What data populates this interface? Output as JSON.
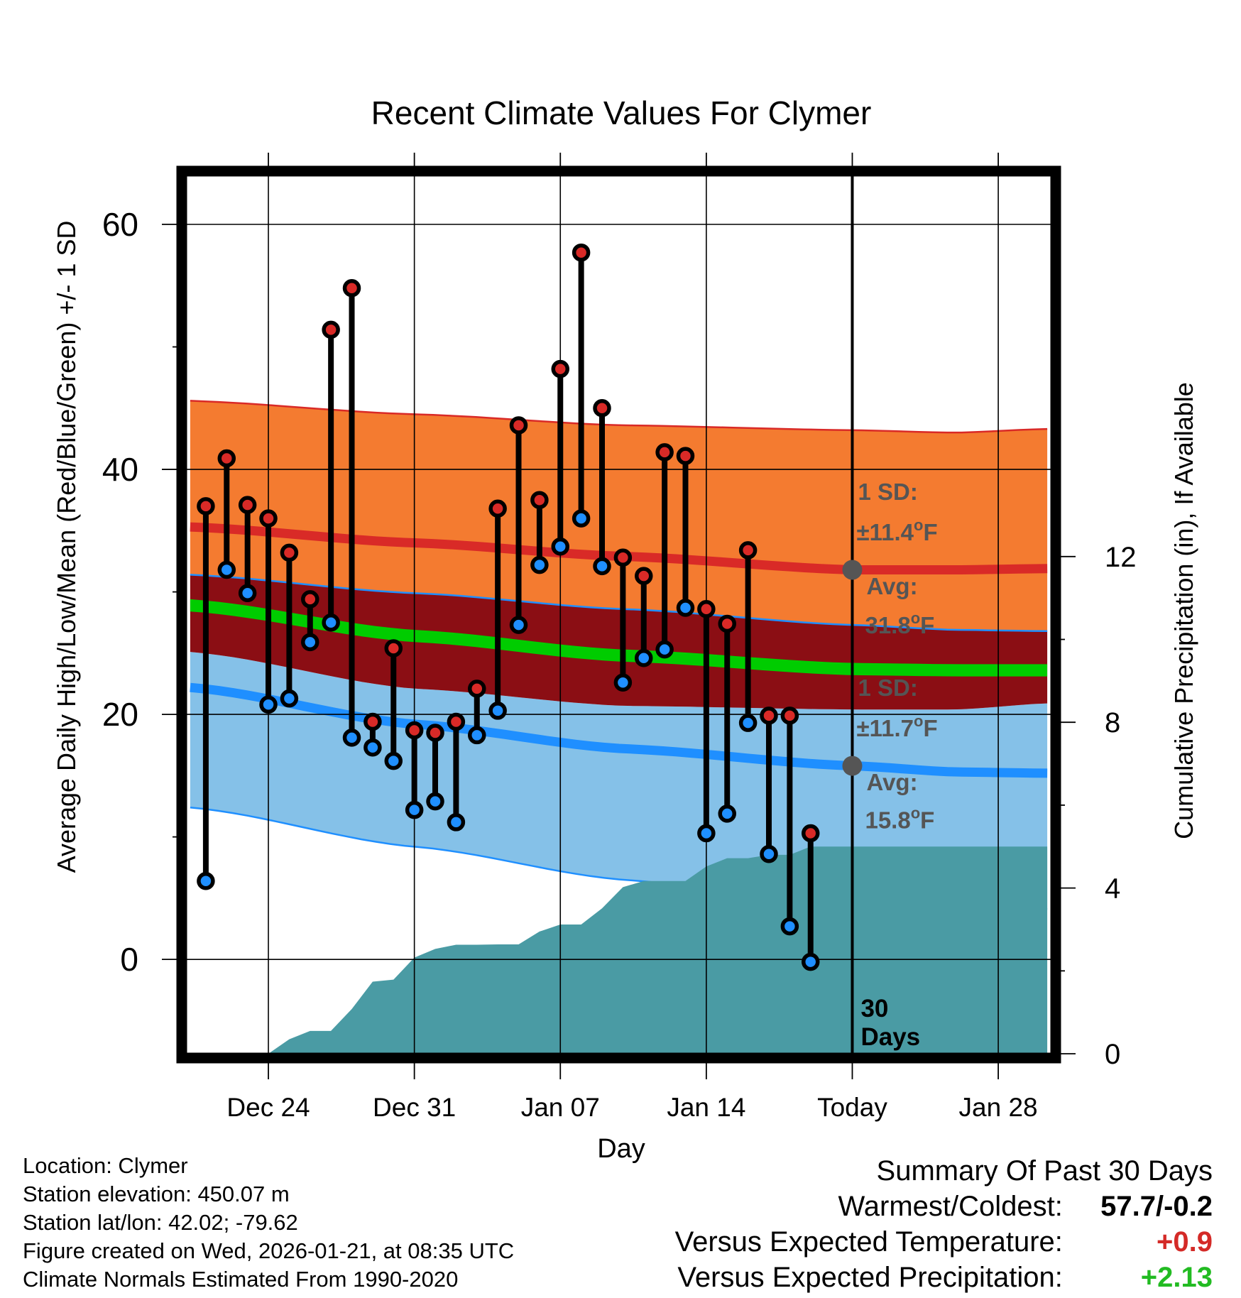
{
  "chart_data": {
    "type": "line",
    "title": "Recent Climate Values For Clymer",
    "xlabel": "Day",
    "ylabel": "Average Daily High/Low/Mean (Red/Blue/Green) +/- 1 SD",
    "y2label": "Cumulative Precipitation (in), If Available",
    "ylim": [
      -7.7,
      64.0
    ],
    "y2lim": [
      0,
      21.2
    ],
    "xlim": [
      -0.95,
      40.55
    ],
    "x_ticks": [
      {
        "day": 3,
        "label": "Dec 24"
      },
      {
        "day": 10,
        "label": "Dec 31"
      },
      {
        "day": 17,
        "label": "Jan 07"
      },
      {
        "day": 24,
        "label": "Jan 14"
      },
      {
        "day": 31,
        "label": "Today"
      },
      {
        "day": 38,
        "label": "Jan 28"
      }
    ],
    "y_ticks": [
      0,
      20,
      40,
      60
    ],
    "y2_ticks": [
      0,
      4,
      8,
      12
    ],
    "today_day": 31,
    "days": [
      0,
      1,
      2,
      3,
      4,
      5,
      6,
      7,
      8,
      9,
      10,
      11,
      12,
      13,
      14,
      15,
      16,
      17,
      18,
      19,
      20,
      21,
      22,
      23,
      24,
      25,
      26,
      27,
      28,
      29
    ],
    "highs": [
      37.0,
      40.9,
      37.1,
      36.0,
      33.2,
      29.4,
      51.4,
      54.8,
      19.4,
      25.4,
      18.7,
      18.5,
      19.4,
      22.1,
      36.8,
      43.6,
      37.5,
      48.2,
      57.7,
      45.0,
      32.8,
      31.3,
      41.4,
      41.1,
      28.6,
      27.4,
      33.4,
      19.9,
      19.9,
      10.3
    ],
    "lows": [
      6.4,
      31.8,
      29.9,
      20.8,
      21.3,
      25.9,
      27.5,
      18.1,
      17.3,
      16.2,
      12.2,
      12.9,
      11.2,
      18.3,
      20.3,
      27.3,
      32.2,
      33.7,
      36.0,
      32.1,
      22.6,
      24.6,
      25.3,
      28.7,
      10.3,
      11.9,
      19.3,
      8.6,
      2.7,
      -0.2
    ],
    "normal_days": [
      -0.75,
      10,
      20,
      31,
      36,
      40.35
    ],
    "normal_high": [
      35.3,
      34.0,
      32.9,
      31.8,
      31.8,
      31.9
    ],
    "normal_high_sd_upper": [
      45.6,
      44.5,
      43.6,
      43.2,
      43.0,
      43.3
    ],
    "normal_high_sd_lower": [
      31.4,
      29.9,
      28.6,
      27.3,
      26.9,
      26.8
    ],
    "normal_mean": [
      28.9,
      26.4,
      24.8,
      23.7,
      23.6,
      23.6
    ],
    "normal_mean_sd_upper": [
      29.4,
      26.9,
      25.3,
      24.2,
      24.1,
      24.1
    ],
    "normal_mean_sd_lower": [
      28.4,
      25.9,
      24.3,
      23.2,
      23.1,
      23.1
    ],
    "normal_low": [
      22.2,
      19.2,
      17.2,
      15.8,
      15.3,
      15.2
    ],
    "normal_low_sd_upper": [
      25.1,
      22.1,
      20.7,
      20.4,
      20.4,
      20.9
    ],
    "normal_low_sd_lower": [
      12.4,
      9.2,
      6.5,
      4.3,
      4.1,
      4.1
    ],
    "precip_days": [
      -0.75,
      3,
      4,
      5,
      6,
      7,
      8,
      9,
      10,
      11,
      12,
      13,
      14,
      15,
      16,
      17,
      18,
      19,
      20,
      21,
      22,
      23,
      24,
      25,
      26,
      27,
      28,
      29,
      30,
      31,
      40.35
    ],
    "precip_cum": [
      0,
      0,
      0.35,
      0.55,
      0.55,
      1.08,
      1.74,
      1.79,
      2.32,
      2.53,
      2.63,
      2.63,
      2.64,
      2.64,
      2.95,
      3.12,
      3.12,
      3.51,
      4.02,
      4.17,
      4.17,
      4.17,
      4.52,
      4.72,
      4.72,
      4.8,
      4.8,
      5.0,
      5.0,
      5.0,
      5.0
    ],
    "annotations": {
      "high_sd": "1 SD:",
      "high_sd_value": "±11.4°F",
      "high_avg": "Avg:",
      "high_avg_value": "31.8°F",
      "low_sd": "1 SD:",
      "low_sd_value": "±11.7°F",
      "low_avg": "Avg:",
      "low_avg_value": "15.8°F",
      "days_count": "30",
      "days_word": "Days"
    },
    "colors": {
      "high": "#d92a27",
      "low": "#1f8fff",
      "mean": "#00cc00",
      "high_band": "#f47b30",
      "overlap_band": "#8b0e14",
      "low_band": "#85c1e8",
      "precip": "#4a9ba4"
    }
  },
  "info": {
    "location": "Location: Clymer",
    "elevation": "Station elevation: 450.07 m",
    "latlon": "Station lat/lon: 42.02; -79.62",
    "created": "Figure created on Wed, 2026-01-21, at 08:35 UTC",
    "normals": "Climate Normals Estimated From 1990-2020"
  },
  "summary": {
    "title": "Summary Of Past 30 Days",
    "warmest_coldest_label": "Warmest/Coldest:",
    "warmest_coldest_value": "57.7/-0.2",
    "temp_label": "Versus Expected Temperature:",
    "temp_value": "+0.9",
    "temp_color": "#d42a27",
    "precip_label": "Versus Expected Precipitation:",
    "precip_value": "+2.13",
    "precip_color": "#22bb22"
  }
}
